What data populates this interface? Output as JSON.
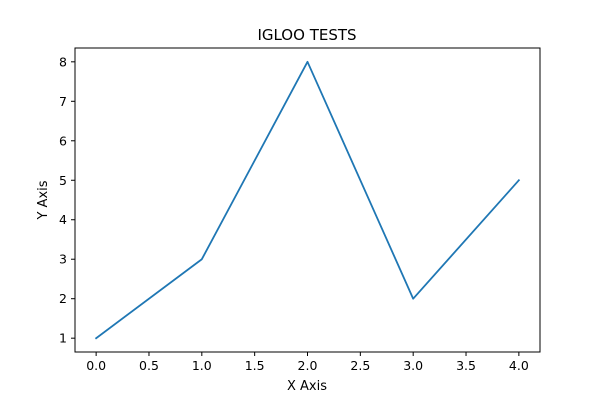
{
  "chart_data": {
    "type": "line",
    "title": "IGLOO TESTS",
    "xlabel": "X Axis",
    "ylabel": "Y Axis",
    "x": [
      0,
      1,
      2,
      3,
      4
    ],
    "series": [
      {
        "values": [
          1,
          3,
          8,
          2,
          5
        ],
        "color": "#1f77b4"
      }
    ],
    "xlim": [
      -0.2,
      4.2
    ],
    "ylim": [
      0.65,
      8.35
    ],
    "xticks": [
      "0.0",
      "0.5",
      "1.0",
      "1.5",
      "2.0",
      "2.5",
      "3.0",
      "3.5",
      "4.0"
    ],
    "yticks": [
      "1",
      "2",
      "3",
      "4",
      "5",
      "6",
      "7",
      "8"
    ],
    "grid": false
  }
}
